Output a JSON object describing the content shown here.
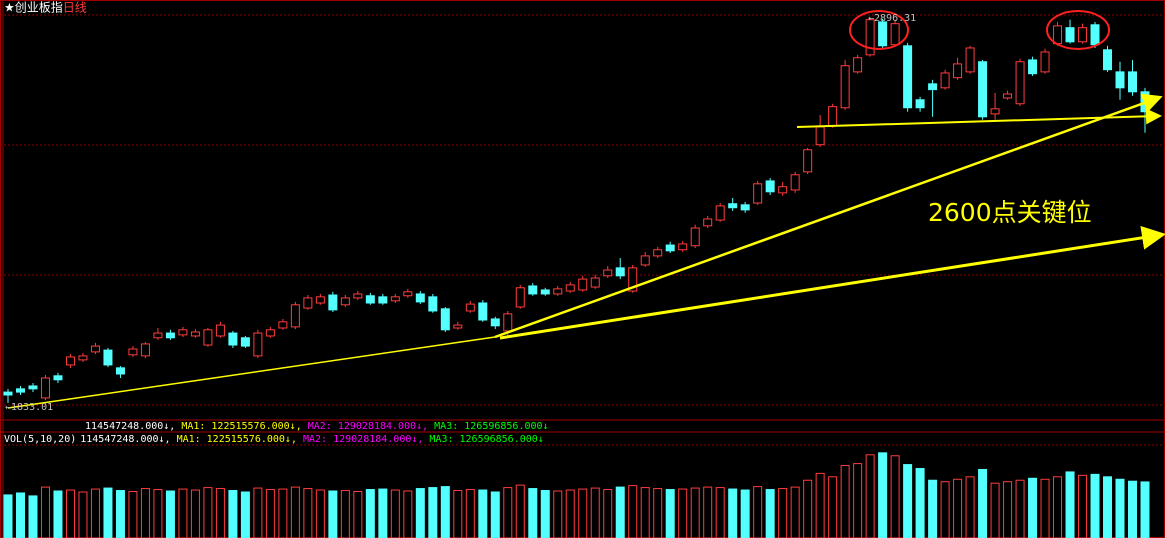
{
  "chart_data": [
    {
      "type": "candlestick",
      "title": "★创业板指",
      "subtitle": "日线",
      "up_color": "#ff3c3c",
      "down_color": "#54ffff",
      "ylim": [
        1786,
        2904
      ],
      "annotations": [
        "←1833.01",
        "←2896.31",
        "2600点关键位"
      ],
      "ohlc": [
        [
          1863,
          1872,
          1833.01,
          1855
        ],
        [
          1872,
          1880,
          1855,
          1863
        ],
        [
          1880,
          1888,
          1863,
          1872
        ],
        [
          1847,
          1910,
          1841,
          1902
        ],
        [
          1908,
          1916,
          1888,
          1897
        ],
        [
          1938,
          1968,
          1930,
          1960
        ],
        [
          1952,
          1971,
          1946,
          1963
        ],
        [
          1974,
          1999,
          1968,
          1990
        ],
        [
          1979,
          1985,
          1932,
          1938
        ],
        [
          1930,
          1935,
          1902,
          1913
        ],
        [
          1966,
          1990,
          1960,
          1982
        ],
        [
          1963,
          2001,
          1957,
          1996
        ],
        [
          2013,
          2040,
          2007,
          2026
        ],
        [
          2026,
          2035,
          2007,
          2013
        ],
        [
          2021,
          2043,
          2015,
          2035
        ],
        [
          2018,
          2037,
          2013,
          2029
        ],
        [
          1993,
          2040,
          1988,
          2035
        ],
        [
          2018,
          2057,
          2013,
          2048
        ],
        [
          2026,
          2032,
          1985,
          1993
        ],
        [
          2013,
          2018,
          1985,
          1990
        ],
        [
          1963,
          2035,
          1957,
          2026
        ],
        [
          2018,
          2043,
          2013,
          2035
        ],
        [
          2040,
          2065,
          2035,
          2057
        ],
        [
          2043,
          2112,
          2037,
          2104
        ],
        [
          2095,
          2131,
          2090,
          2123
        ],
        [
          2109,
          2134,
          2104,
          2126
        ],
        [
          2131,
          2140,
          2084,
          2090
        ],
        [
          2104,
          2131,
          2098,
          2123
        ],
        [
          2123,
          2142,
          2117,
          2134
        ],
        [
          2129,
          2137,
          2104,
          2109
        ],
        [
          2126,
          2134,
          2104,
          2109
        ],
        [
          2115,
          2134,
          2109,
          2126
        ],
        [
          2129,
          2148,
          2123,
          2140
        ],
        [
          2134,
          2142,
          2106,
          2112
        ],
        [
          2126,
          2134,
          2082,
          2087
        ],
        [
          2093,
          2098,
          2029,
          2035
        ],
        [
          2040,
          2057,
          2035,
          2048
        ],
        [
          2087,
          2115,
          2082,
          2106
        ],
        [
          2109,
          2117,
          2057,
          2062
        ],
        [
          2065,
          2071,
          2037,
          2046
        ],
        [
          2032,
          2087,
          2013,
          2079
        ],
        [
          2098,
          2159,
          2093,
          2151
        ],
        [
          2156,
          2164,
          2129,
          2134
        ],
        [
          2145,
          2151,
          2129,
          2134
        ],
        [
          2134,
          2156,
          2129,
          2148
        ],
        [
          2142,
          2167,
          2137,
          2159
        ],
        [
          2145,
          2184,
          2140,
          2175
        ],
        [
          2153,
          2187,
          2148,
          2178
        ],
        [
          2184,
          2211,
          2178,
          2200
        ],
        [
          2206,
          2233,
          2175,
          2184
        ],
        [
          2142,
          2214,
          2137,
          2206
        ],
        [
          2214,
          2250,
          2209,
          2239
        ],
        [
          2239,
          2264,
          2233,
          2256
        ],
        [
          2269,
          2278,
          2247,
          2253
        ],
        [
          2256,
          2280,
          2250,
          2272
        ],
        [
          2267,
          2325,
          2261,
          2316
        ],
        [
          2322,
          2349,
          2316,
          2341
        ],
        [
          2338,
          2385,
          2333,
          2377
        ],
        [
          2383,
          2399,
          2363,
          2372
        ],
        [
          2380,
          2388,
          2358,
          2366
        ],
        [
          2385,
          2446,
          2380,
          2438
        ],
        [
          2446,
          2454,
          2407,
          2416
        ],
        [
          2413,
          2443,
          2405,
          2430
        ],
        [
          2421,
          2471,
          2413,
          2463
        ],
        [
          2471,
          2537,
          2465,
          2532
        ],
        [
          2546,
          2628,
          2540,
          2595
        ],
        [
          2598,
          2659,
          2593,
          2651
        ],
        [
          2648,
          2780,
          2642,
          2764
        ],
        [
          2747,
          2794,
          2742,
          2786
        ],
        [
          2794,
          2896.31,
          2789,
          2891
        ],
        [
          2885,
          2894,
          2813,
          2819
        ],
        [
          2822,
          2891,
          2816,
          2880
        ],
        [
          2819,
          2827,
          2637,
          2648
        ],
        [
          2670,
          2678,
          2637,
          2648
        ],
        [
          2714,
          2725,
          2623,
          2698
        ],
        [
          2703,
          2753,
          2698,
          2744
        ],
        [
          2731,
          2786,
          2725,
          2769
        ],
        [
          2747,
          2819,
          2742,
          2813
        ],
        [
          2775,
          2780,
          2615,
          2623
        ],
        [
          2631,
          2689,
          2615,
          2645
        ],
        [
          2675,
          2695,
          2670,
          2686
        ],
        [
          2659,
          2783,
          2653,
          2775
        ],
        [
          2780,
          2789,
          2736,
          2742
        ],
        [
          2747,
          2811,
          2742,
          2802
        ],
        [
          2825,
          2885,
          2819,
          2874
        ],
        [
          2869,
          2891,
          2825,
          2830
        ],
        [
          2830,
          2880,
          2825,
          2869
        ],
        [
          2877,
          2885,
          2813,
          2822
        ],
        [
          2808,
          2819,
          2747,
          2753
        ],
        [
          2747,
          2775,
          2670,
          2703
        ],
        [
          2747,
          2780,
          2681,
          2692
        ],
        [
          2692,
          2703,
          2579,
          2637
        ]
      ]
    },
    {
      "type": "bar",
      "title": "VOL(5,10,20)",
      "ylim": [
        0,
        190000000
      ],
      "legend": [
        {
          "text": "114547248.000↓,",
          "color": "#ffffff"
        },
        {
          "text": "MA1: 122515576.000↓,",
          "color": "#ffff00"
        },
        {
          "text": "MA2: 129028184.000↓,",
          "color": "#ff00ff"
        },
        {
          "text": "MA3: 126596856.000↓",
          "color": "#00ff00"
        }
      ],
      "values": [
        88000000,
        92000000,
        86000000,
        104000000,
        96000000,
        98000000,
        94000000,
        100000000,
        102000000,
        97000000,
        95000000,
        101000000,
        99000000,
        96000000,
        100000000,
        98000000,
        103000000,
        101000000,
        97000000,
        94000000,
        102000000,
        99000000,
        100000000,
        104000000,
        101000000,
        98000000,
        96000000,
        97000000,
        95000000,
        99000000,
        100000000,
        98000000,
        96000000,
        101000000,
        103000000,
        105000000,
        97000000,
        99000000,
        98000000,
        94000000,
        103000000,
        108000000,
        101000000,
        97000000,
        96000000,
        98000000,
        100000000,
        102000000,
        99000000,
        104000000,
        107000000,
        103000000,
        101000000,
        99000000,
        100000000,
        102000000,
        104000000,
        103000000,
        100000000,
        98000000,
        105000000,
        99000000,
        101000000,
        104000000,
        118000000,
        132000000,
        125000000,
        148000000,
        152000000,
        170000000,
        174000000,
        168000000,
        150000000,
        142000000,
        118000000,
        115000000,
        120000000,
        125000000,
        140000000,
        112000000,
        115000000,
        118000000,
        122000000,
        120000000,
        125000000,
        135000000,
        128000000,
        130000000,
        125000000,
        120000000,
        116000000,
        114547248
      ]
    }
  ]
}
